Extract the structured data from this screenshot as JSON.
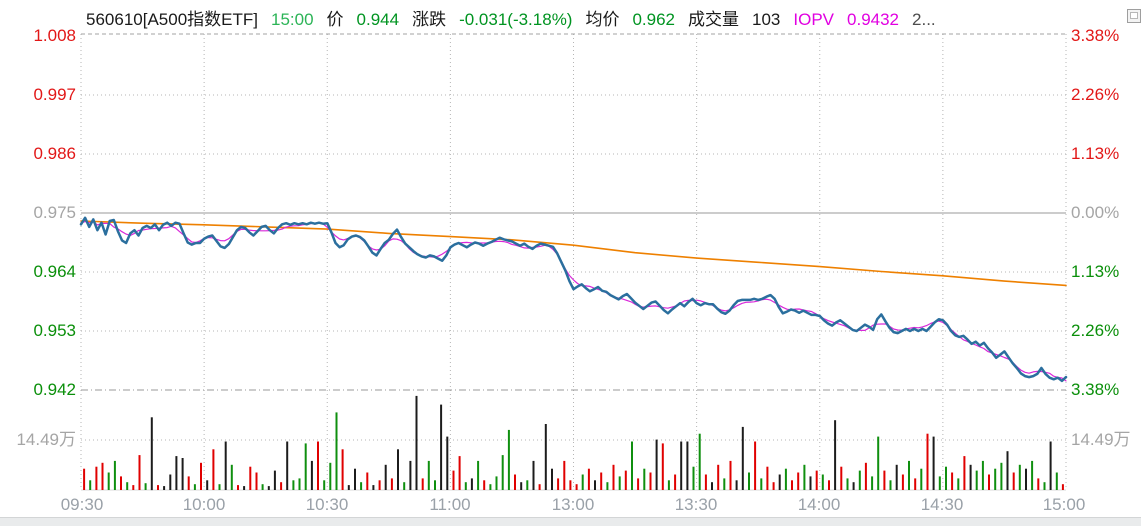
{
  "header": {
    "symbol": "560610[A500指数ETF]",
    "time": "15:00",
    "price_label": "价",
    "price_value": "0.944",
    "change_label": "涨跌",
    "change_value": "-0.031(-3.18%)",
    "avg_label": "均价",
    "avg_value": "0.962",
    "volume_label": "成交量",
    "volume_value": "103",
    "iopv_label": "IOPV",
    "iopv_value": "0.9432",
    "truncated": "2..."
  },
  "icons": {
    "window_icon": "restore-window-icon"
  },
  "axes": {
    "left": [
      "1.008",
      "0.997",
      "0.986",
      "0.975",
      "0.964",
      "0.953",
      "0.942",
      "14.49万"
    ],
    "right": [
      "3.38%",
      "2.26%",
      "1.13%",
      "0.00%",
      "1.13%",
      "2.26%",
      "3.38%",
      "14.49万"
    ],
    "time": [
      "09:30",
      "10:00",
      "10:30",
      "11:00",
      "13:00",
      "13:30",
      "14:00",
      "14:30",
      "15:00"
    ]
  },
  "colors": {
    "price_line": "#2b6f9e",
    "avg_line": "#ee8000",
    "iopv_line": "#d928d9",
    "up_red": "#e21717",
    "down_green": "#0a8f0a",
    "neutral_gray": "#a5a5a5",
    "grid": "#b5b5b5",
    "vol_red": "#e00000",
    "vol_green": "#0f8f0f",
    "vol_black": "#1c1c1c"
  },
  "chart_data": {
    "type": "line",
    "title": "560610 A500指数ETF 分时走势图",
    "x_axis": {
      "labels": [
        "09:30",
        "10:00",
        "10:30",
        "11:00",
        "13:00",
        "13:30",
        "14:00",
        "14:30",
        "15:00"
      ],
      "session_minutes": 240,
      "gridline_minutes": [
        0,
        30,
        60,
        90,
        120,
        150,
        180,
        210,
        240
      ]
    },
    "price_axis": {
      "min": 0.942,
      "max": 1.008,
      "baseline_prev_close": 0.975,
      "ticks": [
        1.008,
        0.997,
        0.986,
        0.975,
        0.964,
        0.953,
        0.942
      ],
      "grid": true
    },
    "pct_axis": {
      "ticks_pct": [
        3.38,
        2.26,
        1.13,
        0.0,
        -1.13,
        -2.26,
        -3.38
      ]
    },
    "volume_axis": {
      "scale_label": "14.49万"
    },
    "series": [
      {
        "name": "价格",
        "color": "#2b6f9e",
        "close": 0.944,
        "minutes_start": 0,
        "minutes_step": 1,
        "values": [
          0.9729,
          0.9741,
          0.9724,
          0.9738,
          0.9718,
          0.9732,
          0.971,
          0.9735,
          0.9737,
          0.9716,
          0.9699,
          0.9694,
          0.9712,
          0.9718,
          0.9708,
          0.9722,
          0.9726,
          0.9722,
          0.9729,
          0.9718,
          0.9728,
          0.9732,
          0.9726,
          0.9732,
          0.973,
          0.9712,
          0.9695,
          0.9691,
          0.9694,
          0.9694,
          0.9702,
          0.9706,
          0.9708,
          0.9698,
          0.9688,
          0.9685,
          0.9692,
          0.9705,
          0.9718,
          0.9724,
          0.9722,
          0.9714,
          0.9708,
          0.9716,
          0.9724,
          0.9726,
          0.9718,
          0.9712,
          0.9722,
          0.9729,
          0.9731,
          0.9728,
          0.9731,
          0.9729,
          0.9731,
          0.9729,
          0.9732,
          0.973,
          0.9732,
          0.973,
          0.9731,
          0.9714,
          0.9694,
          0.9686,
          0.969,
          0.9701,
          0.9706,
          0.9708,
          0.9705,
          0.9699,
          0.9688,
          0.9676,
          0.9671,
          0.9683,
          0.9694,
          0.97,
          0.9711,
          0.9719,
          0.9705,
          0.9693,
          0.9686,
          0.9679,
          0.9673,
          0.9669,
          0.9667,
          0.9671,
          0.9669,
          0.9665,
          0.9661,
          0.9671,
          0.9686,
          0.9691,
          0.9694,
          0.969,
          0.9686,
          0.9691,
          0.9695,
          0.9693,
          0.9689,
          0.9693,
          0.9696,
          0.97,
          0.9704,
          0.9701,
          0.9699,
          0.9697,
          0.9693,
          0.9689,
          0.9693,
          0.9687,
          0.9683,
          0.9689,
          0.9693,
          0.9691,
          0.9689,
          0.9687,
          0.9675,
          0.9659,
          0.9643,
          0.9623,
          0.9608,
          0.9613,
          0.9617,
          0.961,
          0.9604,
          0.9608,
          0.9612,
          0.9605,
          0.9603,
          0.9597,
          0.9593,
          0.9589,
          0.9595,
          0.9599,
          0.9591,
          0.9583,
          0.9577,
          0.9571,
          0.9577,
          0.9583,
          0.9585,
          0.9577,
          0.9569,
          0.9563,
          0.957,
          0.9576,
          0.9582,
          0.9576,
          0.9584,
          0.959,
          0.9582,
          0.9578,
          0.9582,
          0.958,
          0.958,
          0.9572,
          0.9565,
          0.9562,
          0.9568,
          0.9578,
          0.9586,
          0.9588,
          0.9588,
          0.9588,
          0.959,
          0.9588,
          0.959,
          0.9594,
          0.9597,
          0.959,
          0.9575,
          0.9563,
          0.9566,
          0.957,
          0.9568,
          0.9564,
          0.9568,
          0.9564,
          0.956,
          0.956,
          0.9558,
          0.955,
          0.9544,
          0.954,
          0.9546,
          0.955,
          0.9544,
          0.9538,
          0.9532,
          0.953,
          0.9536,
          0.9542,
          0.9538,
          0.9532,
          0.9552,
          0.9561,
          0.9548,
          0.9536,
          0.9528,
          0.9526,
          0.953,
          0.9534,
          0.953,
          0.9534,
          0.953,
          0.9534,
          0.953,
          0.9538,
          0.9546,
          0.9552,
          0.955,
          0.9542,
          0.953,
          0.9522,
          0.9519,
          0.9521,
          0.9514,
          0.9506,
          0.951,
          0.9503,
          0.9508,
          0.9498,
          0.949,
          0.948,
          0.9486,
          0.9492,
          0.9481,
          0.947,
          0.9461,
          0.9451,
          0.9446,
          0.9444,
          0.9446,
          0.945,
          0.9461,
          0.945,
          0.9443,
          0.944,
          0.9443,
          0.9437,
          0.9444
        ]
      },
      {
        "name": "均价",
        "color": "#ee8000",
        "close": 0.962,
        "minutes_start": 0,
        "minutes_step": 15,
        "values": [
          0.9735,
          0.9731,
          0.9728,
          0.9724,
          0.972,
          0.9712,
          0.9706,
          0.97,
          0.969,
          0.9676,
          0.9666,
          0.9658,
          0.965,
          0.9641,
          0.9633,
          0.9623,
          0.9615
        ]
      },
      {
        "name": "IOPV",
        "color": "#d928d9",
        "close": 0.9432,
        "tracks": "价格",
        "end_offset": -0.0007
      }
    ],
    "volume": {
      "colors": {
        "r": "#e00000",
        "g": "#0f8f0f",
        "k": "#1c1c1c"
      },
      "bars": [
        [
          0.22,
          "r"
        ],
        [
          0.1,
          "g"
        ],
        [
          0.24,
          "r"
        ],
        [
          0.28,
          "r"
        ],
        [
          0.18,
          "g"
        ],
        [
          0.3,
          "g"
        ],
        [
          0.14,
          "r"
        ],
        [
          0.08,
          "g"
        ],
        [
          0.05,
          "r"
        ],
        [
          0.36,
          "r"
        ],
        [
          0.07,
          "g"
        ],
        [
          0.75,
          "k"
        ],
        [
          0.05,
          "r"
        ],
        [
          0.04,
          "k"
        ],
        [
          0.16,
          "k"
        ],
        [
          0.35,
          "k"
        ],
        [
          0.33,
          "k"
        ],
        [
          0.14,
          "r"
        ],
        [
          0.06,
          "g"
        ],
        [
          0.28,
          "r"
        ],
        [
          0.1,
          "k"
        ],
        [
          0.42,
          "r"
        ],
        [
          0.06,
          "g"
        ],
        [
          0.5,
          "k"
        ],
        [
          0.26,
          "g"
        ],
        [
          0.05,
          "r"
        ],
        [
          0.04,
          "k"
        ],
        [
          0.24,
          "r"
        ],
        [
          0.18,
          "r"
        ],
        [
          0.06,
          "g"
        ],
        [
          0.04,
          "k"
        ],
        [
          0.2,
          "k"
        ],
        [
          0.08,
          "r"
        ],
        [
          0.5,
          "k"
        ],
        [
          0.1,
          "g"
        ],
        [
          0.12,
          "g"
        ],
        [
          0.48,
          "g"
        ],
        [
          0.3,
          "k"
        ],
        [
          0.5,
          "r"
        ],
        [
          0.1,
          "g"
        ],
        [
          0.28,
          "g"
        ],
        [
          0.8,
          "g"
        ],
        [
          0.42,
          "r"
        ],
        [
          0.05,
          "k"
        ],
        [
          0.22,
          "k"
        ],
        [
          0.08,
          "g"
        ],
        [
          0.18,
          "r"
        ],
        [
          0.05,
          "k"
        ],
        [
          0.1,
          "r"
        ],
        [
          0.26,
          "k"
        ],
        [
          0.12,
          "r"
        ],
        [
          0.42,
          "k"
        ],
        [
          0.08,
          "g"
        ],
        [
          0.3,
          "k"
        ],
        [
          0.97,
          "k"
        ],
        [
          0.12,
          "r"
        ],
        [
          0.3,
          "g"
        ],
        [
          0.1,
          "g"
        ],
        [
          0.88,
          "k"
        ],
        [
          0.55,
          "k"
        ],
        [
          0.2,
          "r"
        ],
        [
          0.35,
          "r"
        ],
        [
          0.08,
          "g"
        ],
        [
          0.12,
          "k"
        ],
        [
          0.3,
          "g"
        ],
        [
          0.1,
          "r"
        ],
        [
          0.06,
          "g"
        ],
        [
          0.14,
          "g"
        ],
        [
          0.36,
          "g"
        ],
        [
          0.62,
          "g"
        ],
        [
          0.16,
          "r"
        ],
        [
          0.08,
          "k"
        ],
        [
          0.1,
          "g"
        ],
        [
          0.3,
          "k"
        ],
        [
          0.06,
          "r"
        ],
        [
          0.68,
          "k"
        ],
        [
          0.22,
          "k"
        ],
        [
          0.12,
          "r"
        ],
        [
          0.3,
          "r"
        ],
        [
          0.1,
          "r"
        ],
        [
          0.06,
          "r"
        ],
        [
          0.16,
          "g"
        ],
        [
          0.22,
          "r"
        ],
        [
          0.1,
          "k"
        ],
        [
          0.18,
          "r"
        ],
        [
          0.08,
          "g"
        ],
        [
          0.26,
          "r"
        ],
        [
          0.14,
          "g"
        ],
        [
          0.2,
          "r"
        ],
        [
          0.5,
          "g"
        ],
        [
          0.12,
          "r"
        ],
        [
          0.22,
          "g"
        ],
        [
          0.18,
          "r"
        ],
        [
          0.52,
          "k"
        ],
        [
          0.48,
          "r"
        ],
        [
          0.1,
          "g"
        ],
        [
          0.16,
          "r"
        ],
        [
          0.5,
          "k"
        ],
        [
          0.5,
          "k"
        ],
        [
          0.24,
          "g"
        ],
        [
          0.58,
          "g"
        ],
        [
          0.16,
          "r"
        ],
        [
          0.08,
          "k"
        ],
        [
          0.26,
          "r"
        ],
        [
          0.12,
          "g"
        ],
        [
          0.3,
          "r"
        ],
        [
          0.1,
          "k"
        ],
        [
          0.65,
          "k"
        ],
        [
          0.18,
          "g"
        ],
        [
          0.5,
          "r"
        ],
        [
          0.12,
          "g"
        ],
        [
          0.24,
          "r"
        ],
        [
          0.08,
          "r"
        ],
        [
          0.16,
          "k"
        ],
        [
          0.22,
          "g"
        ],
        [
          0.1,
          "r"
        ],
        [
          0.18,
          "r"
        ],
        [
          0.26,
          "g"
        ],
        [
          0.14,
          "k"
        ],
        [
          0.2,
          "r"
        ],
        [
          0.16,
          "g"
        ],
        [
          0.1,
          "r"
        ],
        [
          0.72,
          "k"
        ],
        [
          0.24,
          "r"
        ],
        [
          0.12,
          "g"
        ],
        [
          0.08,
          "k"
        ],
        [
          0.2,
          "g"
        ],
        [
          0.28,
          "r"
        ],
        [
          0.14,
          "g"
        ],
        [
          0.55,
          "g"
        ],
        [
          0.2,
          "r"
        ],
        [
          0.1,
          "g"
        ],
        [
          0.26,
          "k"
        ],
        [
          0.16,
          "r"
        ],
        [
          0.3,
          "g"
        ],
        [
          0.12,
          "r"
        ],
        [
          0.22,
          "g"
        ],
        [
          0.58,
          "r"
        ],
        [
          0.55,
          "k"
        ],
        [
          0.14,
          "g"
        ],
        [
          0.24,
          "g"
        ],
        [
          0.18,
          "r"
        ],
        [
          0.12,
          "g"
        ],
        [
          0.35,
          "r"
        ],
        [
          0.26,
          "k"
        ],
        [
          0.2,
          "g"
        ],
        [
          0.3,
          "g"
        ],
        [
          0.16,
          "r"
        ],
        [
          0.22,
          "g"
        ],
        [
          0.28,
          "g"
        ],
        [
          0.4,
          "k"
        ],
        [
          0.18,
          "r"
        ],
        [
          0.26,
          "g"
        ],
        [
          0.22,
          "k"
        ],
        [
          0.3,
          "g"
        ],
        [
          0.12,
          "r"
        ],
        [
          0.08,
          "g"
        ],
        [
          0.5,
          "k"
        ],
        [
          0.18,
          "g"
        ],
        [
          0.06,
          "r"
        ]
      ]
    }
  }
}
